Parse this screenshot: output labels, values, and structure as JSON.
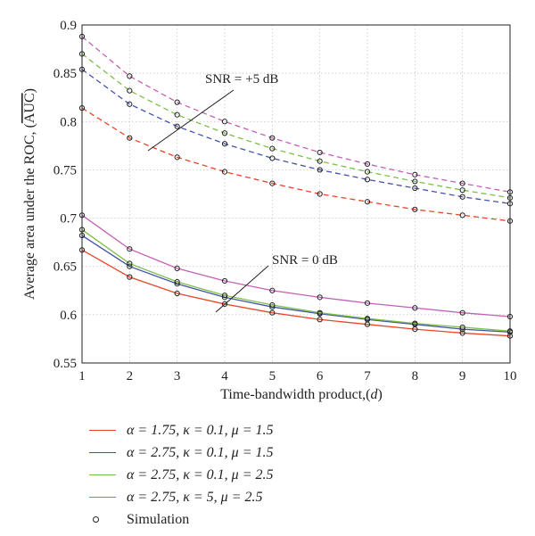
{
  "chart_data": {
    "type": "line",
    "xlabel_main": "Time-bandwidth product,(",
    "xlabel_var": "d",
    "xlabel_end": ")",
    "ylabel_main": "Average area under the ROC, (",
    "ylabel_over": "AUC",
    "ylabel_end": ")",
    "xlim": [
      1,
      10
    ],
    "ylim": [
      0.55,
      0.9
    ],
    "xticks": [
      "1",
      "2",
      "3",
      "4",
      "5",
      "6",
      "7",
      "8",
      "9",
      "10"
    ],
    "yticks": [
      "0.55",
      "0.6",
      "0.65",
      "0.7",
      "0.75",
      "0.8",
      "0.85",
      "0.9"
    ],
    "grid": true,
    "x": [
      1,
      2,
      3,
      4,
      5,
      6,
      7,
      8,
      9,
      10
    ],
    "annotations": [
      {
        "text": "SNR = +5 dB"
      },
      {
        "text": "SNR = 0 dB"
      }
    ],
    "series": [
      {
        "name": "α = 1.75, κ = 0.1, μ = 1.5",
        "color": "#e8472a",
        "snr": "0 dB",
        "style": "solid",
        "values": [
          0.667,
          0.639,
          0.622,
          0.611,
          0.602,
          0.595,
          0.59,
          0.585,
          0.581,
          0.578
        ]
      },
      {
        "name": "α = 2.75, κ = 0.1, μ = 1.5",
        "color": "#4453a8",
        "snr": "0 dB",
        "style": "solid",
        "values": [
          0.682,
          0.65,
          0.632,
          0.618,
          0.608,
          0.601,
          0.595,
          0.59,
          0.585,
          0.582
        ]
      },
      {
        "name": "α = 2.75, κ = 0.1, μ = 2.5",
        "color": "#7cbf49",
        "snr": "0 dB",
        "style": "solid",
        "values": [
          0.688,
          0.653,
          0.634,
          0.62,
          0.61,
          0.602,
          0.596,
          0.591,
          0.587,
          0.583
        ]
      },
      {
        "name": "α = 2.75, κ = 5, μ = 2.5",
        "color": "#c460b4",
        "snr": "0 dB",
        "style": "solid",
        "values": [
          0.703,
          0.668,
          0.648,
          0.635,
          0.625,
          0.618,
          0.612,
          0.607,
          0.602,
          0.598
        ]
      },
      {
        "name": "α = 1.75, κ = 0.1, μ = 1.5",
        "color": "#e8472a",
        "snr": "+5 dB",
        "style": "dashed",
        "values": [
          0.814,
          0.783,
          0.763,
          0.748,
          0.736,
          0.725,
          0.717,
          0.709,
          0.703,
          0.697
        ]
      },
      {
        "name": "α = 2.75, κ = 0.1, μ = 1.5",
        "color": "#4453a8",
        "snr": "+5 dB",
        "style": "dashed",
        "values": [
          0.854,
          0.818,
          0.795,
          0.777,
          0.762,
          0.75,
          0.74,
          0.731,
          0.722,
          0.715
        ]
      },
      {
        "name": "α = 2.75, κ = 0.1, μ = 2.5",
        "color": "#7cbf49",
        "snr": "+5 dB",
        "style": "dashed",
        "values": [
          0.87,
          0.832,
          0.807,
          0.788,
          0.772,
          0.759,
          0.748,
          0.738,
          0.729,
          0.721
        ]
      },
      {
        "name": "α = 2.75, κ = 5, μ = 2.5",
        "color": "#c460b4",
        "snr": "+5 dB",
        "style": "dashed",
        "values": [
          0.888,
          0.847,
          0.82,
          0.8,
          0.783,
          0.768,
          0.756,
          0.745,
          0.736,
          0.727
        ]
      }
    ],
    "simulation_label": "Simulation"
  },
  "legend": [
    {
      "label": "α = 1.75, κ = 0.1, μ = 1.5",
      "color": "#e8472a"
    },
    {
      "label": "α = 2.75, κ = 0.1, μ = 1.5",
      "color": "#4453a8"
    },
    {
      "label": "α = 2.75, κ = 0.1, μ = 2.5",
      "color": "#7cbf49"
    },
    {
      "label": "α = 2.75, κ = 5, μ = 2.5",
      "color": "#c460b4"
    }
  ]
}
